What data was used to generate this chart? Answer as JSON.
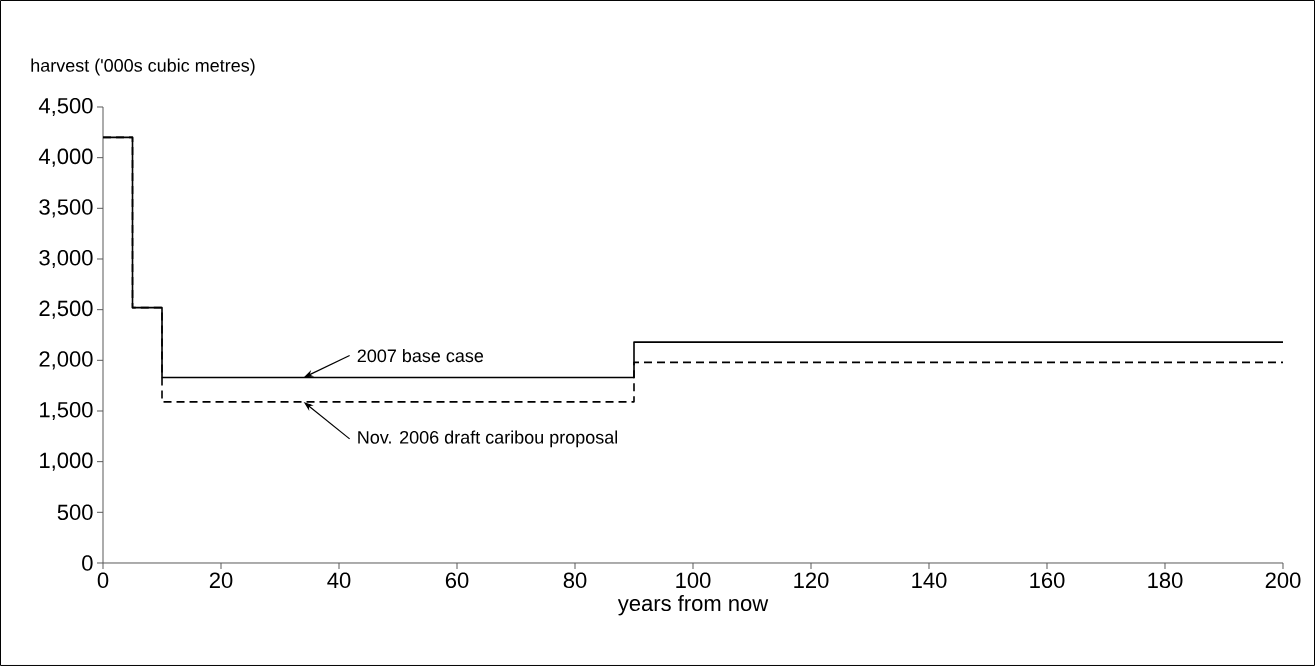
{
  "chart_data": {
    "type": "step",
    "xlabel": "years from now",
    "ylabel": "harvest ('000s cubic metres)",
    "x": [
      0,
      5,
      10,
      90,
      200
    ],
    "series": [
      {
        "color": "#000000",
        "line_style": "solid",
        "values": [
          4200,
          2520,
          1830,
          2180,
          2180
        ]
      },
      {
        "color": "#000000",
        "line_style": "dashed",
        "values": [
          4200,
          2520,
          1590,
          1980,
          1980
        ]
      }
    ],
    "xlim": [
      0,
      200
    ],
    "xticks": [
      0,
      20,
      40,
      60,
      80,
      100,
      120,
      140,
      160,
      180,
      200
    ],
    "ylim": [
      0,
      4500
    ],
    "yticks": [
      0,
      500,
      {
        "value": 1000,
        "label": "1,000"
      },
      {
        "value": 1500,
        "label": "1,500"
      },
      {
        "value": 2000,
        "label": "2,000"
      },
      {
        "value": 2500,
        "label": "2,500"
      },
      {
        "value": 3000,
        "label": "3,000"
      },
      {
        "value": 3500,
        "label": "3,500"
      },
      {
        "value": 4000,
        "label": "4,000"
      },
      {
        "value": 4500,
        "label": "4,500"
      }
    ],
    "annotations": [
      {
        "text": "2007 base case",
        "x": 34,
        "y": 1830
      },
      {
        "text": "Nov. 2006 draft caribou proposal",
        "x": 34,
        "y": 1590
      }
    ]
  }
}
